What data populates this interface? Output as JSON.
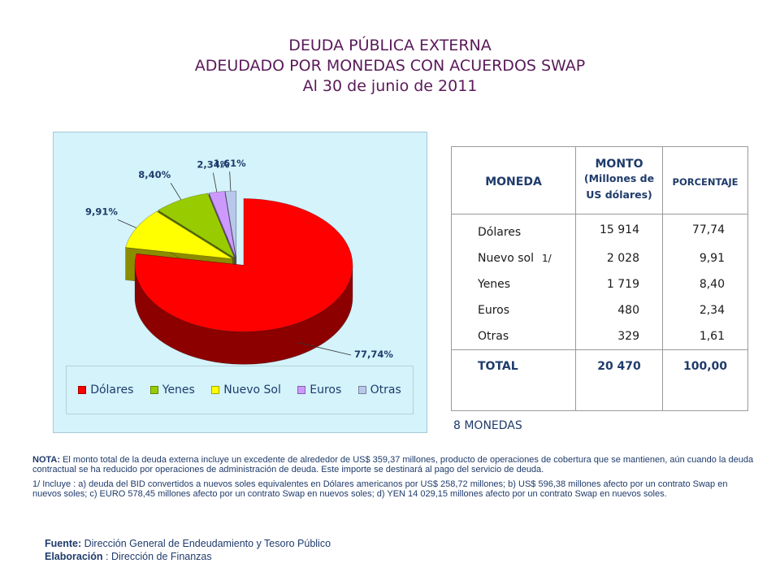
{
  "titles": {
    "line1": "DEUDA PÚBLICA EXTERNA",
    "line2": "ADEUDADO POR MONEDAS CON ACUERDOS SWAP",
    "line3": "Al 30 de junio de 2011"
  },
  "chart_data": {
    "type": "pie",
    "title": "",
    "categories": [
      "Dólares",
      "Nuevo Sol",
      "Yenes",
      "Euros",
      "Otras"
    ],
    "values": [
      77.74,
      9.91,
      8.4,
      2.34,
      1.61
    ],
    "data_labels": [
      "77,74%",
      "9,91%",
      "8,40%",
      "2,34%",
      "1,61%"
    ],
    "colors": [
      "#ff0000",
      "#ffff00",
      "#99cc00",
      "#cc99ff",
      "#b8c8ec"
    ],
    "legend": {
      "placement": "bottom",
      "items": [
        {
          "label": "Dólares",
          "color": "#ff0000"
        },
        {
          "label": "Yenes",
          "color": "#99cc00"
        },
        {
          "label": "Nuevo Sol",
          "color": "#ffff00"
        },
        {
          "label": "Euros",
          "color": "#cc99ff"
        },
        {
          "label": "Otras",
          "color": "#b8c8ec"
        }
      ]
    },
    "three_d": true,
    "exploded_slice": "Dólares"
  },
  "table": {
    "headers": {
      "moneda": "MONEDA",
      "monto_line1": "MONTO",
      "monto_line2": "(Millones de",
      "monto_line3": "US dólares)",
      "porcentaje": "PORCENTAJE"
    },
    "rows": [
      {
        "name": "Dólares",
        "note": "",
        "monto": "15 914",
        "pct": "77,74"
      },
      {
        "name": "Nuevo sol",
        "note": "1/",
        "monto": "2 028",
        "pct": "9,91"
      },
      {
        "name": "Yenes",
        "note": "",
        "monto": "1 719",
        "pct": "8,40"
      },
      {
        "name": "Euros",
        "note": "",
        "monto": "480",
        "pct": "2,34"
      },
      {
        "name": "Otras",
        "note": "",
        "monto": "329",
        "pct": "1,61"
      }
    ],
    "total": {
      "name": "TOTAL",
      "monto": "20 470",
      "pct": "100,00"
    }
  },
  "monedas_count": "8  MONEDAS",
  "notes": {
    "nota_label": "NOTA:",
    "nota_text": " El monto total de la deuda externa incluye un excedente de alrededor de US$ 359,37 millones, producto de operaciones de cobertura que se mantienen, aún cuando la deuda contractual se ha reducido por operaciones de administración de deuda. Este importe se destinará al pago del servicio de deuda.",
    "footnote_1": "1/  Incluye : a) deuda del BID convertidos a nuevos  soles equivalentes en Dólares americanos por US$ 258,72 millones; b) US$ 596,38 millones afecto por un contrato Swap en nuevos soles;  c) EURO 578,45 millones afecto por un contrato Swap en nuevos  soles; d) YEN 14 029,15 millones afecto por un contrato Swap en nuevos  soles."
  },
  "footer": {
    "fuente_label": "Fuente:",
    "fuente_text": " Dirección General de Endeudamiento y Tesoro Público",
    "elaboracion_label": "Elaboración",
    "elaboracion_text": " : Dirección de Finanzas"
  }
}
